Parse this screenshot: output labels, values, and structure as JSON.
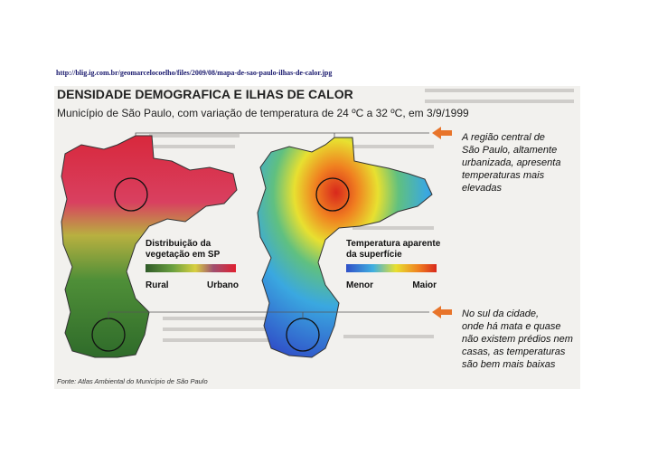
{
  "url": "http://blig.ig.com.br/geomarcelocoelho/files/2009/08/mapa-de-sao-paulo-ilhas-de-calor.jpg",
  "title": "DENSIDADE DEMOGRAFICA E ILHAS DE CALOR",
  "subtitle": "Município de São Paulo, com variação de temperatura de 24 ºC a 32 ºC, em 3/9/1999",
  "left_map": {
    "legend_title": [
      "Distribuição da",
      "vegetação em SP"
    ],
    "legend_min": "Rural",
    "legend_max": "Urbano"
  },
  "right_map": {
    "legend_title": [
      "Temperatura aparente",
      "da superfície"
    ],
    "legend_min": "Menor",
    "legend_max": "Maior"
  },
  "annotations": [
    [
      "A região central de",
      "São Paulo, altamente",
      "urbanizada, apresenta",
      "temperaturas mais",
      "elevadas"
    ],
    [
      "No sul da cidade,",
      "onde há mata e quase",
      "não existem prédios nem",
      "casas, as temperaturas",
      "são bem mais baixas"
    ]
  ],
  "source": "Fonte: Atlas Ambiental do Município de São Paulo"
}
